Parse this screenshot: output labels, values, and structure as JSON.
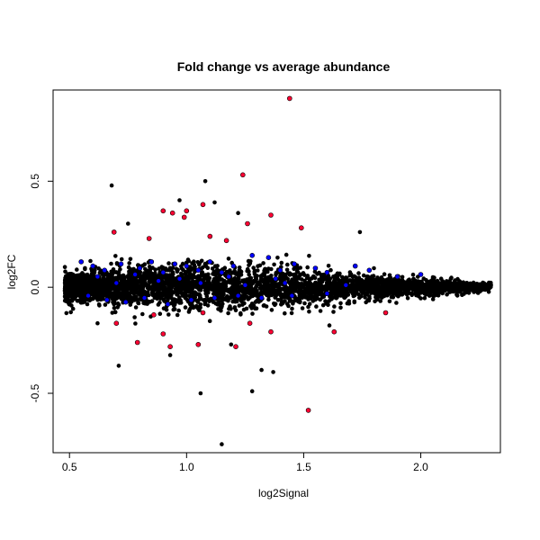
{
  "chart_data": {
    "type": "scatter",
    "title": "Fold change vs average abundance",
    "xlabel": "log2Signal",
    "ylabel": "log2FC",
    "xlim": [
      0.43,
      2.34
    ],
    "ylim": [
      -0.78,
      0.93
    ],
    "x_ticks": [
      0.5,
      1.0,
      1.5,
      2.0
    ],
    "x_tick_labels": [
      "0.5",
      "1.0",
      "1.5",
      "2.0"
    ],
    "y_ticks": [
      -0.5,
      0.0,
      0.5
    ],
    "y_tick_labels": [
      "-0.5",
      "0.0",
      "0.5"
    ],
    "grid": false,
    "legend": "none",
    "colors": {
      "background": "#ffffff",
      "axis": "#000000",
      "default_points": "#000000",
      "blue_points": "#0000ff",
      "red_points": "#ff0033"
    },
    "point_cloud": {
      "description_only": false,
      "x_range": [
        0.48,
        2.3
      ],
      "center_y": 0.0,
      "spread_profile": [
        {
          "x": 0.5,
          "sd": 0.035
        },
        {
          "x": 0.75,
          "sd": 0.05
        },
        {
          "x": 1.0,
          "sd": 0.055
        },
        {
          "x": 1.25,
          "sd": 0.05
        },
        {
          "x": 1.5,
          "sd": 0.04
        },
        {
          "x": 1.75,
          "sd": 0.03
        },
        {
          "x": 2.0,
          "sd": 0.02
        },
        {
          "x": 2.3,
          "sd": 0.01
        }
      ]
    },
    "series": [
      {
        "name": "",
        "color": "#000000",
        "points": [
          [
            0.68,
            0.48
          ],
          [
            1.08,
            0.5
          ],
          [
            1.06,
            -0.5
          ],
          [
            1.28,
            -0.49
          ],
          [
            1.15,
            -0.74
          ],
          [
            0.71,
            -0.37
          ],
          [
            1.37,
            -0.4
          ],
          [
            1.32,
            -0.39
          ],
          [
            1.12,
            0.4
          ],
          [
            0.97,
            0.41
          ],
          [
            1.22,
            0.35
          ],
          [
            0.75,
            0.3
          ],
          [
            1.74,
            0.26
          ],
          [
            1.8,
            0.09
          ],
          [
            2.3,
            0.01
          ],
          [
            2.2,
            -0.02
          ],
          [
            1.61,
            -0.18
          ],
          [
            0.62,
            -0.17
          ],
          [
            0.93,
            -0.32
          ],
          [
            1.19,
            -0.27
          ]
        ]
      },
      {
        "name": "",
        "color": "#0000ff",
        "points": [
          [
            0.55,
            0.12
          ],
          [
            0.6,
            0.1
          ],
          [
            0.65,
            0.08
          ],
          [
            0.72,
            0.11
          ],
          [
            0.8,
            0.09
          ],
          [
            0.85,
            0.12
          ],
          [
            0.9,
            0.07
          ],
          [
            0.95,
            0.11
          ],
          [
            1.0,
            0.1
          ],
          [
            1.05,
            0.08
          ],
          [
            1.1,
            0.12
          ],
          [
            1.15,
            0.07
          ],
          [
            1.2,
            0.1
          ],
          [
            1.28,
            0.15
          ],
          [
            1.35,
            0.14
          ],
          [
            1.4,
            0.08
          ],
          [
            1.46,
            0.11
          ],
          [
            1.55,
            0.09
          ],
          [
            1.6,
            0.07
          ],
          [
            1.72,
            0.1
          ],
          [
            1.78,
            0.08
          ],
          [
            1.9,
            0.05
          ],
          [
            2.0,
            0.06
          ],
          [
            0.58,
            -0.04
          ],
          [
            0.66,
            -0.06
          ],
          [
            0.74,
            -0.07
          ],
          [
            0.82,
            -0.05
          ],
          [
            0.92,
            -0.08
          ],
          [
            1.02,
            -0.06
          ],
          [
            1.12,
            -0.05
          ],
          [
            1.22,
            -0.04
          ],
          [
            1.32,
            -0.05
          ],
          [
            1.45,
            -0.04
          ],
          [
            1.6,
            -0.03
          ],
          [
            0.7,
            0.02
          ],
          [
            0.88,
            0.03
          ],
          [
            1.06,
            0.02
          ],
          [
            1.25,
            0.01
          ],
          [
            1.42,
            0.02
          ],
          [
            1.68,
            0.01
          ],
          [
            0.62,
            0.05
          ],
          [
            0.78,
            0.06
          ],
          [
            0.97,
            0.04
          ],
          [
            1.18,
            0.05
          ],
          [
            1.38,
            0.04
          ]
        ]
      },
      {
        "name": "",
        "color": "#ff0033",
        "points": [
          [
            1.44,
            0.89
          ],
          [
            1.24,
            0.53
          ],
          [
            1.07,
            0.39
          ],
          [
            0.9,
            0.36
          ],
          [
            0.94,
            0.35
          ],
          [
            1.0,
            0.36
          ],
          [
            1.36,
            0.34
          ],
          [
            1.26,
            0.3
          ],
          [
            0.99,
            0.33
          ],
          [
            1.49,
            0.28
          ],
          [
            1.1,
            0.24
          ],
          [
            1.17,
            0.22
          ],
          [
            0.69,
            0.26
          ],
          [
            0.84,
            0.23
          ],
          [
            1.52,
            -0.58
          ],
          [
            1.36,
            -0.21
          ],
          [
            1.21,
            -0.28
          ],
          [
            0.93,
            -0.28
          ],
          [
            1.63,
            -0.21
          ],
          [
            0.79,
            -0.26
          ],
          [
            1.85,
            -0.12
          ],
          [
            0.7,
            -0.17
          ],
          [
            0.86,
            -0.13
          ],
          [
            1.07,
            -0.12
          ],
          [
            1.27,
            -0.17
          ],
          [
            0.9,
            -0.22
          ],
          [
            1.05,
            -0.27
          ]
        ]
      }
    ]
  }
}
